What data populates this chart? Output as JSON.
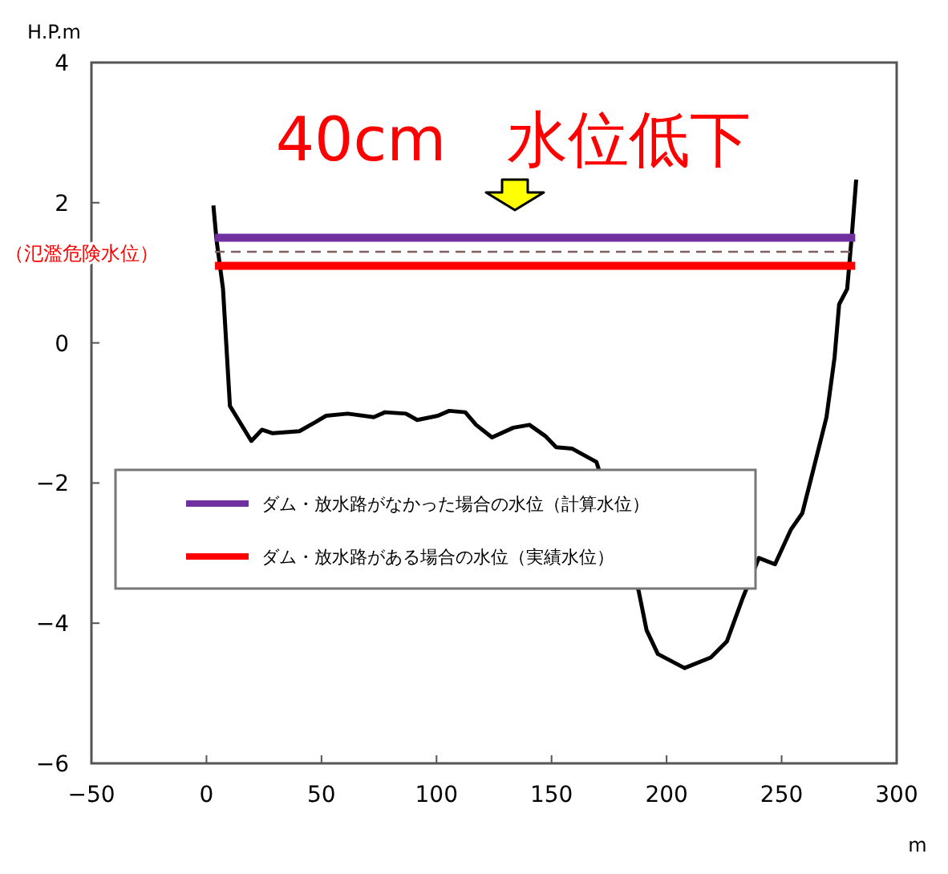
{
  "chart_data": {
    "type": "line",
    "title": "40cm　水位低下",
    "xlabel": "m",
    "ylabel": "H.P.m",
    "xlim": [
      -50,
      300
    ],
    "xticks": [
      -50,
      0,
      50,
      100,
      150,
      200,
      250,
      300
    ],
    "ylim": [
      -6,
      4
    ],
    "yticks": [
      -6,
      -4,
      -2,
      0,
      2,
      4
    ],
    "grid": false,
    "legend": "left",
    "marker": "none",
    "series": [
      {
        "color": "#000000",
        "x": [
          3.0,
          4.4,
          7.2,
          10.2,
          19.5,
          24.1,
          28.8,
          40.4,
          47.4,
          52.0,
          61.4,
          72.7,
          77.6,
          86.7,
          91.6,
          100.6,
          105.5,
          112.5,
          117.2,
          124.1,
          133.4,
          140.4,
          147.3,
          152.0,
          159.0,
          169.5,
          187.8,
          191.3,
          196.2,
          207.8,
          219.2,
          226.2,
          233.1,
          240.1,
          247.1,
          254.1,
          259.0,
          266.0,
          269.5,
          273.0,
          275.0,
          278.5,
          280.6,
          282.4
        ],
        "values": [
          1.96,
          1.46,
          0.77,
          -0.9,
          -1.4,
          -1.24,
          -1.29,
          -1.26,
          -1.13,
          -1.04,
          -1.01,
          -1.06,
          -0.99,
          -1.01,
          -1.1,
          -1.04,
          -0.97,
          -0.99,
          -1.17,
          -1.35,
          -1.21,
          -1.17,
          -1.33,
          -1.49,
          -1.51,
          -1.7,
          -3.53,
          -4.1,
          -4.44,
          -4.64,
          -4.49,
          -4.26,
          -3.64,
          -3.07,
          -3.16,
          -2.66,
          -2.43,
          -1.52,
          -1.06,
          -0.21,
          0.55,
          0.77,
          1.57,
          2.33
        ]
      },
      {
        "name": "ダム・放水路がなかった場合の水位（計算水位）",
        "color": "#7030a0",
        "x": [
          3.7,
          282
        ],
        "values": [
          1.5,
          1.5
        ]
      },
      {
        "name": "ダム・放水路がある場合の水位（実績水位）",
        "color": "#ff0000",
        "x": [
          3.7,
          282
        ],
        "values": [
          1.1,
          1.1
        ]
      }
    ],
    "ref_lines": [
      {
        "axis": "y",
        "value": 1.3,
        "label": "（氾濫危険水位）",
        "color": "#806060",
        "line_style": "dashed"
      }
    ]
  }
}
